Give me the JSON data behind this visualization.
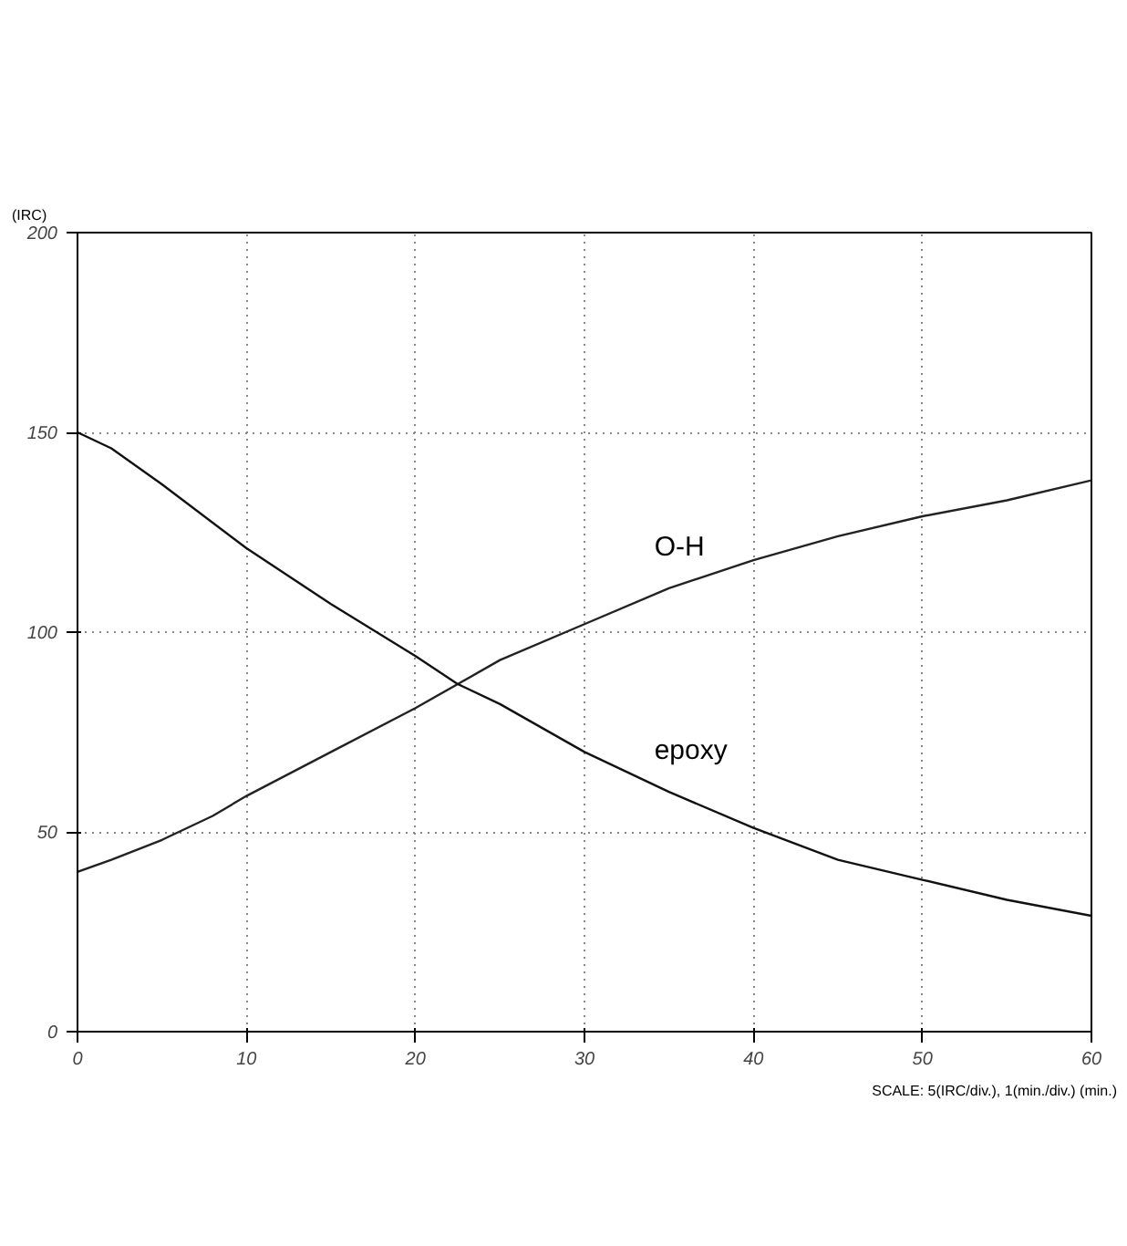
{
  "chart_data": {
    "type": "line",
    "ylabel": "(IRC)",
    "xlabel": "SCALE: 5(IRC/div.), 1(min./div.) (min.)",
    "xlim": [
      0,
      60
    ],
    "ylim": [
      0,
      200
    ],
    "xticks": [
      0,
      10,
      20,
      30,
      40,
      50,
      60
    ],
    "yticks": [
      0,
      50,
      100,
      150,
      200
    ],
    "grid": true,
    "marker": "none",
    "line_style": "solid",
    "series": [
      {
        "name": "O-H",
        "color": "#222222",
        "x": [
          0,
          2,
          5,
          8,
          10,
          15,
          20,
          22.5,
          25,
          30,
          35,
          40,
          45,
          50,
          55,
          60
        ],
        "values": [
          40,
          43,
          48,
          54,
          59,
          70,
          81,
          87,
          93,
          102,
          111,
          118,
          124,
          129,
          133,
          138
        ]
      },
      {
        "name": "epoxy",
        "color": "#111111",
        "x": [
          0,
          2,
          5,
          10,
          15,
          20,
          22.5,
          25,
          30,
          35,
          40,
          45,
          50,
          55,
          60
        ],
        "values": [
          150,
          146,
          137,
          121,
          107,
          94,
          87,
          82,
          70,
          60,
          51,
          43,
          38,
          33,
          29
        ]
      }
    ]
  }
}
